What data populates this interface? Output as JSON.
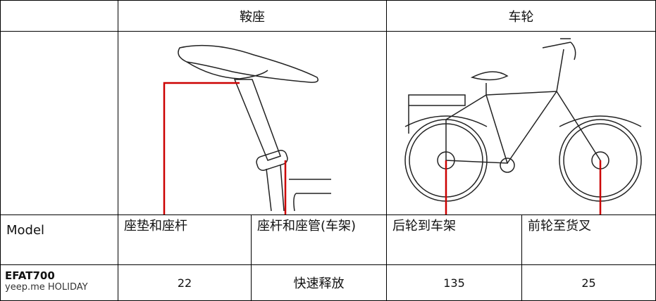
{
  "table": {
    "header": [
      "鞍座",
      "车轮"
    ],
    "labels": [
      "Model",
      "座垫和座杆",
      "座杆和座管(车架)",
      "后轮到车架",
      "前轮至货叉"
    ],
    "rows": [
      {
        "model": "EFAT700",
        "sub": "yeep.me HOLIDAY",
        "values": [
          22,
          "快速释放",
          135,
          25
        ]
      }
    ]
  }
}
